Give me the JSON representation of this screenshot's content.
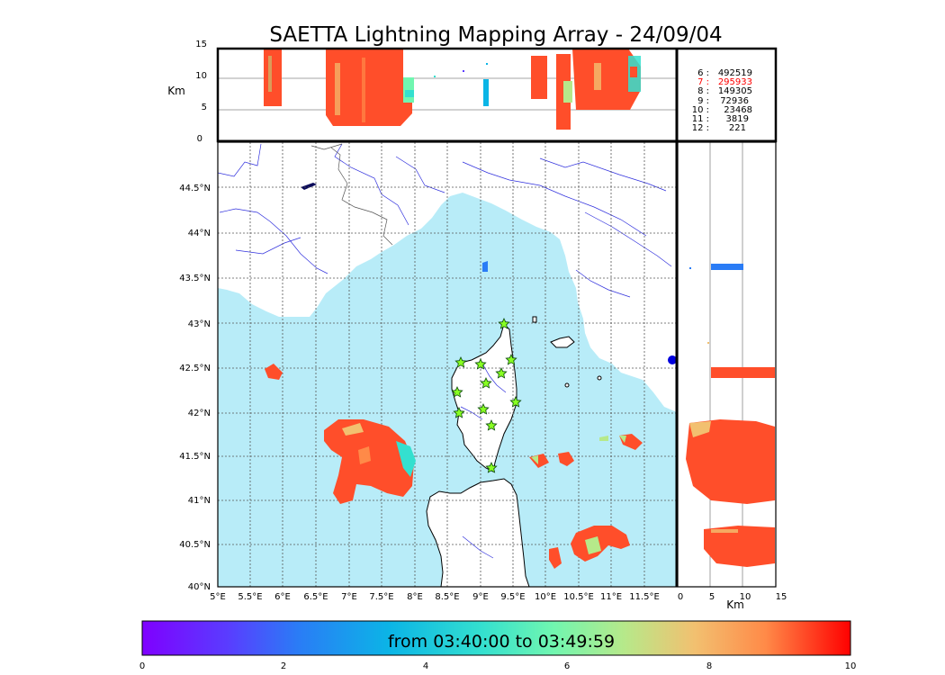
{
  "title": "SAETTA Lightning Mapping Array - 24/09/04",
  "colorbar": {
    "label": "from 03:40:00 to 03:49:59",
    "ticks": [
      "0",
      "2",
      "4",
      "6",
      "8",
      "10"
    ]
  },
  "top_panel": {
    "ylabel": "Km",
    "yticks": [
      "15",
      "10",
      "5",
      "0"
    ]
  },
  "side_panel": {
    "xlabel": "Km",
    "xticks": [
      "0",
      "5",
      "10",
      "15"
    ]
  },
  "map": {
    "lon_ticks": [
      "5°E",
      "5.5°E",
      "6°E",
      "6.5°E",
      "7°E",
      "7.5°E",
      "8°E",
      "8.5°E",
      "9°E",
      "9.5°E",
      "10°E",
      "10.5°E",
      "11°E",
      "11.5°E"
    ],
    "lat_ticks": [
      "44.5°N",
      "44°N",
      "43.5°N",
      "43°N",
      "42.5°N",
      "42°N",
      "41.5°N",
      "41°N",
      "40.5°N",
      "40°N"
    ]
  },
  "counts": [
    {
      "label": "6 :",
      "value": "492519",
      "color": "#000000"
    },
    {
      "label": "7 :",
      "value": "295933",
      "color": "#ff0000"
    },
    {
      "label": "8 :",
      "value": "149305",
      "color": "#000000"
    },
    {
      "label": "9 :",
      "value": "72936",
      "color": "#000000"
    },
    {
      "label": "10 :",
      "value": "23468",
      "color": "#000000"
    },
    {
      "label": "11 :",
      "value": "3819",
      "color": "#000000"
    },
    {
      "label": "12 :",
      "value": "221",
      "color": "#000000"
    }
  ],
  "colors": {
    "sea": "#b8ecf8",
    "land": "#ffffff",
    "storm": "#ff4e2a",
    "coast": "#000000",
    "rivers": "#3030dd",
    "stations": "#88ff22"
  }
}
